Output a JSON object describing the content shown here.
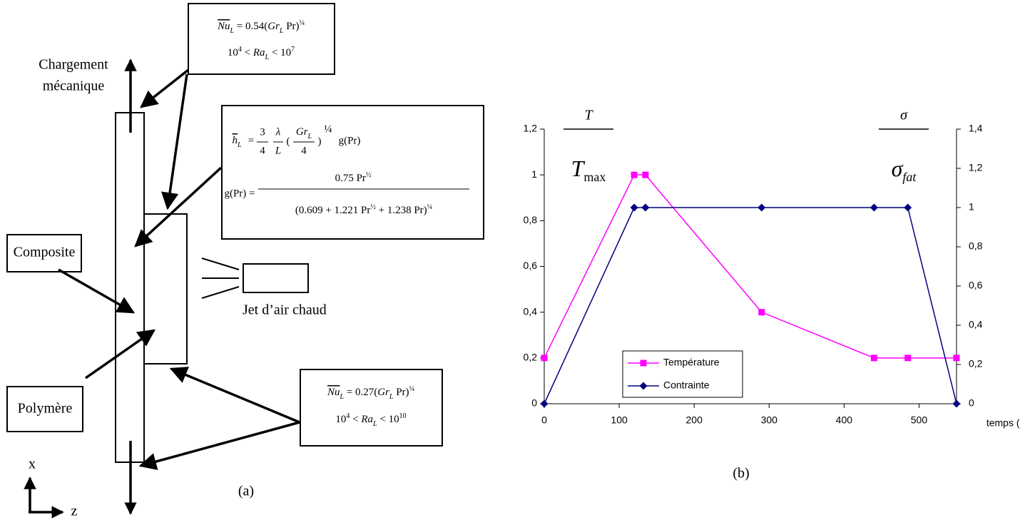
{
  "chart_data": {
    "type": "line",
    "x": [
      0,
      120,
      135,
      290,
      440,
      485,
      550
    ],
    "series": [
      {
        "name": "Température",
        "color": "#ff00ff",
        "marker": "square",
        "axis": "y",
        "values": [
          0.2,
          1,
          1,
          0.4,
          0.2,
          0.2,
          0.2
        ]
      },
      {
        "name": "Contrainte",
        "color": "#000080",
        "marker": "diamond",
        "axis": "y2",
        "values": [
          0,
          1,
          1,
          1,
          1,
          1,
          0
        ]
      }
    ],
    "xlim": [
      0,
      550
    ],
    "xticks": [
      0,
      100,
      200,
      300,
      400,
      500
    ],
    "ylim": [
      0,
      1.2
    ],
    "yticks": [
      0,
      {
        "value": 0.2,
        "label": "0,2"
      },
      {
        "value": 0.4,
        "label": "0,4"
      },
      {
        "value": 0.6,
        "label": "0,6"
      },
      {
        "value": 0.8,
        "label": "0,8"
      },
      1,
      {
        "value": 1.2,
        "label": "1,2"
      }
    ],
    "y2lim": [
      0,
      1.4
    ],
    "y2ticks": [
      0,
      {
        "value": 0.2,
        "label": "0,2"
      },
      {
        "value": 0.4,
        "label": "0,4"
      },
      {
        "value": 0.6,
        "label": "0,6"
      },
      {
        "value": 0.8,
        "label": "0,8"
      },
      1,
      {
        "value": 1.2,
        "label": "1,2"
      },
      {
        "value": 1.4,
        "label": "1,4"
      }
    ],
    "xlabel": "temps (s)",
    "ylabel": {
      "numerator": "T",
      "denominator": "T",
      "subscript": "max"
    },
    "y2label": {
      "numerator": "σ",
      "denominator": "σ",
      "subscript": "fat"
    },
    "legend": "lower left",
    "grid": false,
    "caption": "(b)"
  },
  "diagram": {
    "load_label": [
      "Chargement",
      "mécanique"
    ],
    "composite": "Composite",
    "polymer": "Polymère",
    "jet": "Jet d’air chaud",
    "axis_x": "x",
    "axis_z": "z",
    "caption": "(a)",
    "top_formula": [
      "Nu",
      "L",
      " = 0.54(",
      "Gr",
      "L",
      " Pr)",
      "¼"
    ],
    "top_range": [
      "10",
      "4",
      " < ",
      "Ra",
      "L",
      " < 10",
      "7"
    ],
    "bottom_formula": [
      "Nu",
      "L",
      " = 0.27(",
      "Gr",
      "L",
      " Pr)",
      "¼"
    ],
    "bottom_range": [
      "10",
      "4",
      " < ",
      "Ra",
      "L",
      " < 10",
      "10"
    ],
    "h": {
      "lhs": [
        "h",
        "L"
      ],
      "eq": "=",
      "frac1": [
        "3",
        "4"
      ],
      "frac2": [
        "λ",
        "L"
      ],
      "open": "(",
      "frac3": [
        "Gr",
        "L",
        "4"
      ],
      "close": ")",
      "exp": "¼",
      "tail": "g(Pr)"
    },
    "g": {
      "lhs": "g(Pr) =",
      "num": [
        "0.75 Pr",
        "½"
      ],
      "den": [
        "(0.609 + 1.221 Pr",
        "½",
        " + 1.238 Pr)",
        "¼"
      ]
    }
  }
}
